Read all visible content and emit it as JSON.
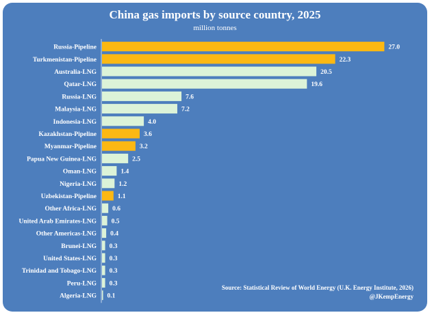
{
  "chart_data": {
    "type": "bar",
    "orientation": "horizontal",
    "title": "China gas imports by source country, 2025",
    "subtitle": "million tonnes",
    "categories": [
      "Russia-Pipeline",
      "Turkmenistan-Pipeline",
      "Australia-LNG",
      "Qatar-LNG",
      "Russia-LNG",
      "Malaysia-LNG",
      "Indonesia-LNG",
      "Kazakhstan-Pipeline",
      "Myanmar-Pipeline",
      "Papua New Guinea-LNG",
      "Oman-LNG",
      "Nigeria-LNG",
      "Uzbekistan-Pipeline",
      "Other Africa-LNG",
      "United Arab Emirates-LNG",
      "Other Americas-LNG",
      "Brunei-LNG",
      "United States-LNG",
      "Trinidad and Tobago-LNG",
      "Peru-LNG",
      "Algeria-LNG"
    ],
    "values": [
      27.0,
      22.3,
      20.5,
      19.6,
      7.6,
      7.2,
      4.0,
      3.6,
      3.2,
      2.5,
      1.4,
      1.2,
      1.1,
      0.6,
      0.5,
      0.4,
      0.3,
      0.3,
      0.3,
      0.3,
      0.1
    ],
    "value_labels": [
      "27.0",
      "22.3",
      "20.5",
      "19.6",
      "7.6",
      "7.2",
      "4.0",
      "3.6",
      "3.2",
      "2.5",
      "1.4",
      "1.2",
      "1.1",
      "0.6",
      "0.5",
      "0.4",
      "0.3",
      "0.3",
      "0.3",
      "0.3",
      "0.1"
    ],
    "xlim": [
      0,
      27.5
    ],
    "grid": false,
    "colors": {
      "background": "#4d7ebd",
      "pipeline": "#fcb813",
      "lng": "#dcf3d8",
      "text": "#ffffff"
    }
  },
  "source_line": "Source: Statistical Review of World Energy (U.K. Energy Institute, 2026)",
  "handle": "@JKempEnergy"
}
